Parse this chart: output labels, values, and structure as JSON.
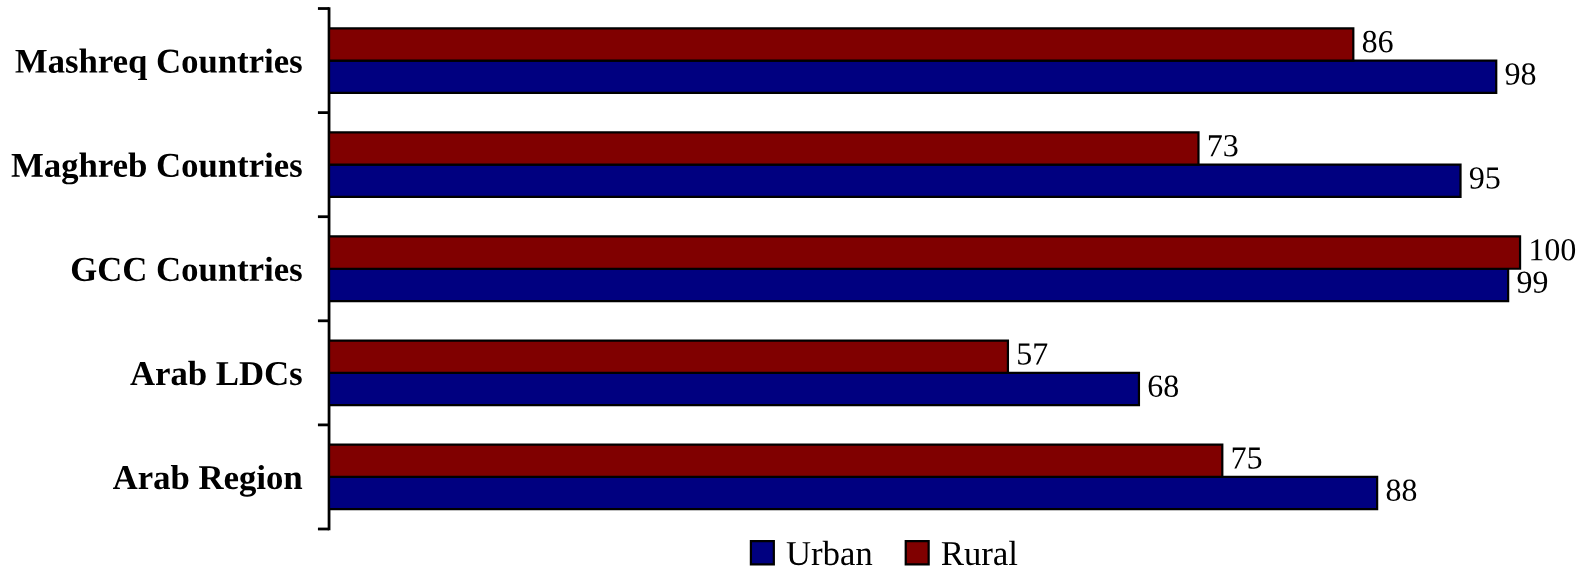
{
  "chart_data": {
    "type": "bar",
    "orientation": "horizontal",
    "categories": [
      "Mashreq Countries",
      "Maghreb Countries",
      "GCC Countries",
      "Arab LDCs",
      "Arab Region"
    ],
    "series": [
      {
        "name": "Urban",
        "color": "#000080",
        "values": [
          98,
          95,
          99,
          68,
          88
        ]
      },
      {
        "name": "Rural",
        "color": "#800000",
        "values": [
          86,
          73,
          100,
          57,
          75
        ]
      }
    ],
    "tick_labels": "y",
    "data_labels": true,
    "legend": "bottom"
  }
}
